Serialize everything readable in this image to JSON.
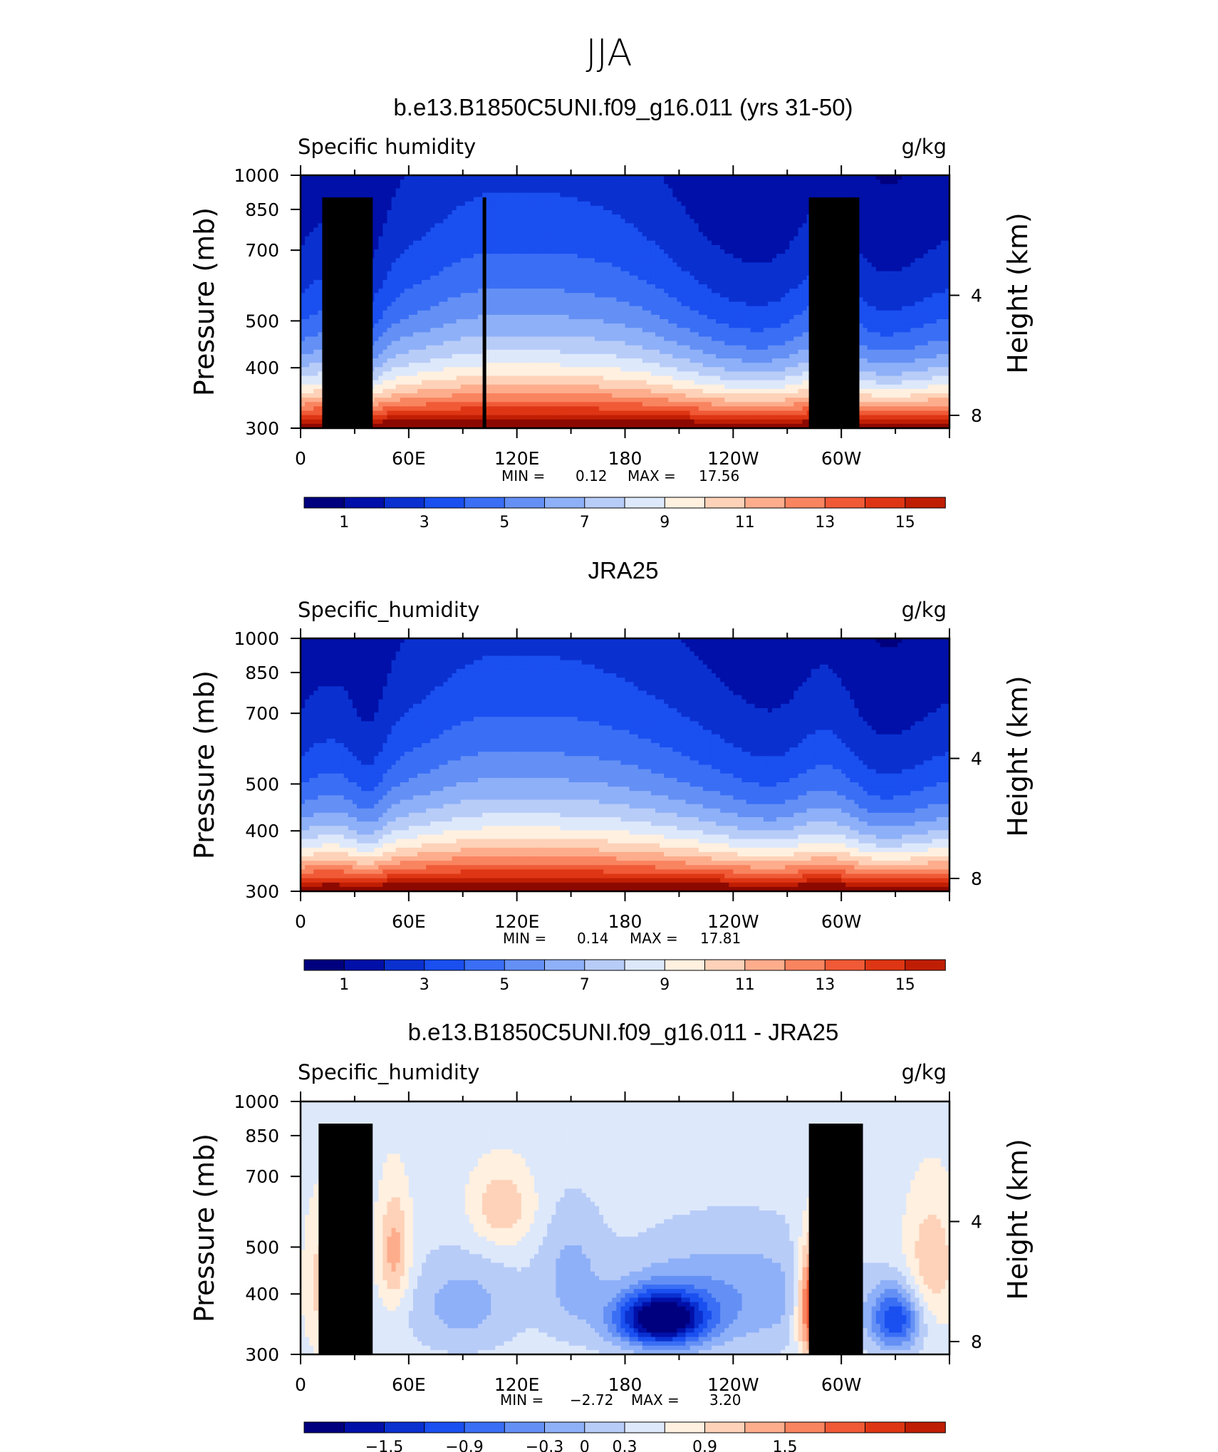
{
  "page_title": "JJA",
  "y_ticks": [
    "300",
    "400",
    "500",
    "700",
    "850",
    "1000"
  ],
  "y_tick_values": [
    300,
    400,
    500,
    700,
    850,
    1000
  ],
  "x_ticks": [
    "0",
    "60E",
    "120E",
    "180",
    "120W",
    "60W"
  ],
  "x_tick_values": [
    0,
    60,
    120,
    180,
    240,
    300
  ],
  "right_ticks": [
    "8",
    "4"
  ],
  "right_tick_values": [
    8,
    4
  ],
  "ylabel": "Pressure  (mb)",
  "ylabel_right": "Height  (km)",
  "abs_palette": [
    "#00007f",
    "#0010a8",
    "#0a30d0",
    "#1a4ff0",
    "#3a6ef5",
    "#6490f5",
    "#8eb0f8",
    "#b8ccf8",
    "#dde8fb",
    "#fff0e0",
    "#fed2b8",
    "#fdad8c",
    "#f98460",
    "#f05a36",
    "#de3614",
    "#c01e04",
    "#8c0900"
  ],
  "diff_palette": [
    "#00007f",
    "#0010a8",
    "#0a30d0",
    "#1a4ff0",
    "#3a6ef5",
    "#6490f5",
    "#8eb0f8",
    "#b8ccf8",
    "#dde8fb",
    "#fff0e0",
    "#fed2b8",
    "#fdad8c",
    "#f98460",
    "#f05a36",
    "#de3614",
    "#c01e04",
    "#8c0900"
  ],
  "chart_data": [
    {
      "type": "heatmap",
      "title": "b.e13.B1850C5UNI.f09_g16.011 (yrs 31-50)",
      "left_label": "Specific  humidity",
      "units": "g/kg",
      "min_label": "MIN =",
      "min_value": "0.12",
      "max_label": "MAX =",
      "max_value": "17.56",
      "x_range": [
        0,
        360
      ],
      "y_range": [
        1000,
        300
      ],
      "colorbar_labels": [
        "1",
        "3",
        "5",
        "7",
        "9",
        "11",
        "13",
        "15"
      ],
      "colorbar_label_values": [
        1,
        3,
        5,
        7,
        9,
        11,
        13,
        15
      ]
    },
    {
      "type": "heatmap",
      "title": "JRA25",
      "left_label": "Specific_humidity",
      "units": "g/kg",
      "min_label": "MIN =",
      "min_value": "0.14",
      "max_label": "MAX =",
      "max_value": "17.81",
      "x_range": [
        0,
        360
      ],
      "y_range": [
        1000,
        300
      ],
      "colorbar_labels": [
        "1",
        "3",
        "5",
        "7",
        "9",
        "11",
        "13",
        "15"
      ],
      "colorbar_label_values": [
        1,
        3,
        5,
        7,
        9,
        11,
        13,
        15
      ]
    },
    {
      "type": "heatmap",
      "title": "b.e13.B1850C5UNI.f09_g16.011 - JRA25",
      "left_label": "Specific_humidity",
      "units": "g/kg",
      "min_label": "MIN =",
      "min_value": "−2.72",
      "max_label": "MAX =",
      "max_value": "3.20",
      "x_range": [
        0,
        360
      ],
      "y_range": [
        1000,
        300
      ],
      "colorbar_labels": [
        "−1.5",
        "−0.9",
        "−0.3",
        "0",
        "0.3",
        "0.9",
        "1.5"
      ],
      "colorbar_label_values": [
        -1.5,
        -0.9,
        -0.3,
        0,
        0.3,
        0.9,
        1.5
      ]
    }
  ]
}
